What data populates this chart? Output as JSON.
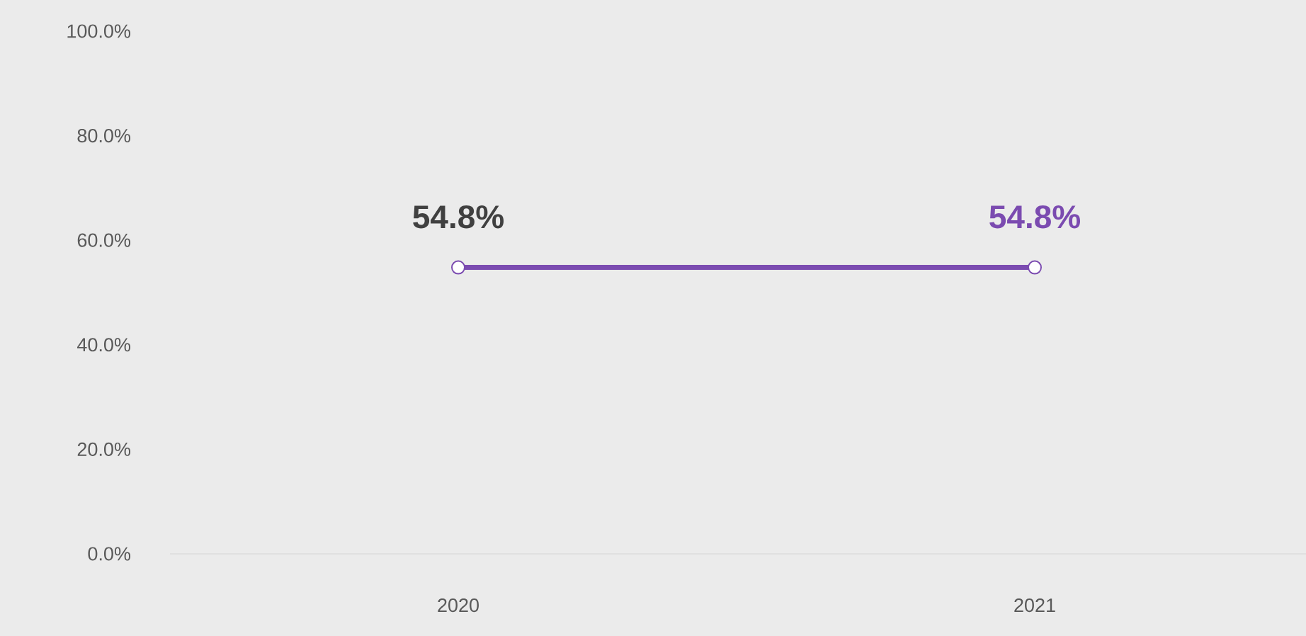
{
  "chart_data": {
    "type": "line",
    "categories": [
      "2020",
      "2021"
    ],
    "series": [
      {
        "color": "#7b4bb0",
        "values": [
          54.8,
          54.8
        ],
        "value_labels": [
          "54.8%",
          "54.8%"
        ]
      }
    ],
    "ylim": [
      0,
      100
    ],
    "yticks": [
      {
        "value": 0,
        "label": "0.0%"
      },
      {
        "value": 20,
        "label": "20.0%"
      },
      {
        "value": 40,
        "label": "40.0%"
      },
      {
        "value": 60,
        "label": "60.0%"
      },
      {
        "value": 80,
        "label": "80.0%"
      },
      {
        "value": 100,
        "label": "100.0%"
      }
    ],
    "marker": "circle",
    "line_style": "solid"
  }
}
